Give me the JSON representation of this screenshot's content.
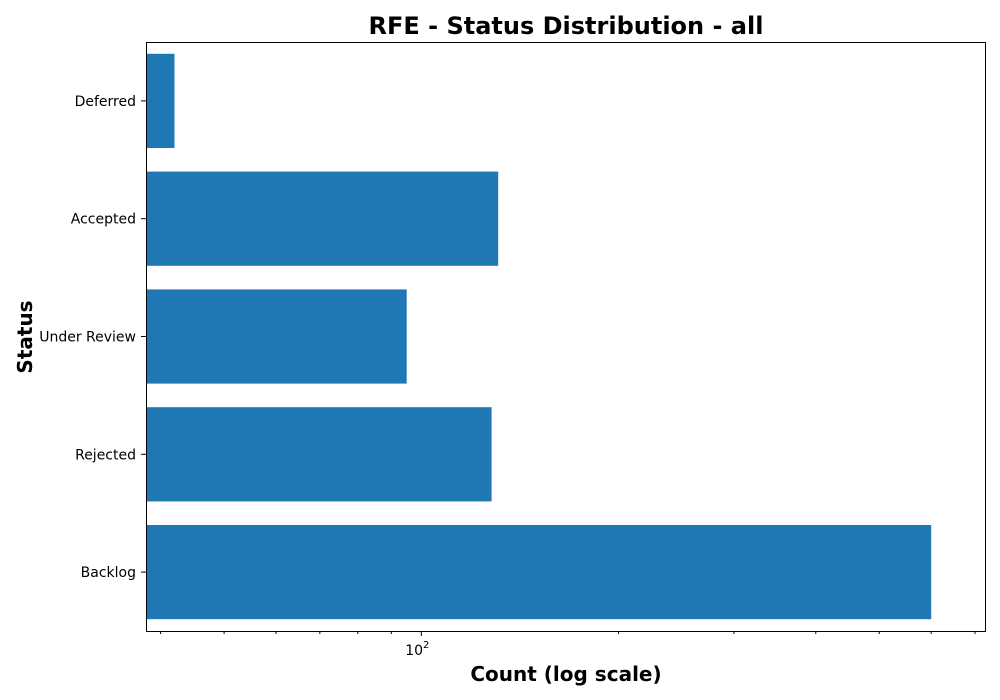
{
  "chart_data": {
    "type": "bar",
    "orientation": "horizontal",
    "title": "RFE - Status Distribution - all",
    "xlabel": "Count (log scale)",
    "ylabel": "Status",
    "categories": [
      "Backlog",
      "Rejected",
      "Under Review",
      "Accepted",
      "Deferred"
    ],
    "values": [
      600,
      128,
      95,
      131,
      42
    ],
    "x_scale": "log",
    "xlim": [
      38,
      725
    ],
    "x_tick_labels": [
      {
        "base": "10",
        "exponent": "2",
        "value": 100
      }
    ],
    "grid": false,
    "bar_color": "#1f77b4"
  }
}
